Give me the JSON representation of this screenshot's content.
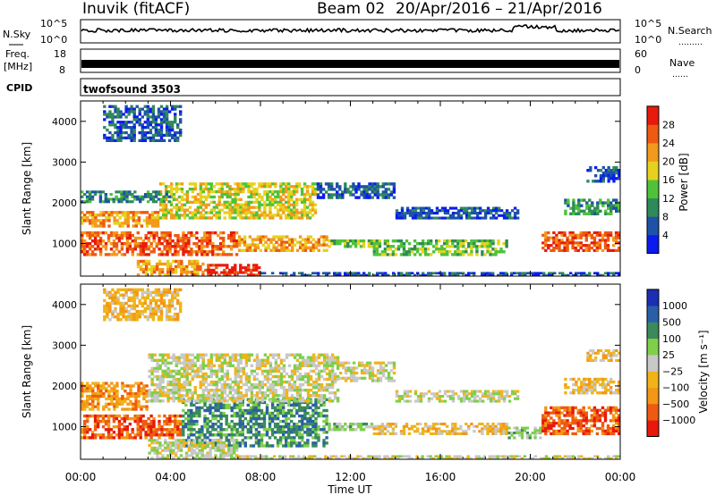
{
  "header": {
    "station": "Inuvik  (fitACF)",
    "beam": "Beam 02",
    "date_range": "20/Apr/2016 – 21/Apr/2016"
  },
  "nsky_panel": {
    "left_label": "N.Sky",
    "right_label": "N.Search",
    "right_dots": "………",
    "tick_top": "10^5",
    "tick_bottom": "10^0",
    "rtick_top": "10^5",
    "rtick_bottom": "10^0"
  },
  "freq_panel": {
    "left_label_1": "Freq.",
    "left_label_2": "[MHz]",
    "right_label": "Nave",
    "right_dots": "……",
    "tick_top": "18",
    "tick_bottom": "8",
    "rtick_top": "60",
    "rtick_bottom": "0"
  },
  "cpid": {
    "label": "CPID",
    "value": "twofsound 3503"
  },
  "colors": {
    "power_scale": [
      "#0a1bf0",
      "#1e52a8",
      "#2f8a5a",
      "#4fc23a",
      "#e6d21e",
      "#f39a1c",
      "#ee5a12",
      "#e81a0c"
    ],
    "velocity_scale": [
      "#e8190c",
      "#ee5a12",
      "#f49716",
      "#f0b419",
      "#c8c8c8",
      "#7fcf4a",
      "#3a8a5a",
      "#2a5fa8",
      "#1a2fb4"
    ]
  },
  "chart_data": [
    {
      "type": "heatmap",
      "name": "power",
      "xlabel": "",
      "ylabel": "Slant Range [km]",
      "yticks": [
        "1000",
        "2000",
        "3000",
        "4000"
      ],
      "ylim": [
        200,
        4500
      ],
      "xlim": [
        0,
        24
      ],
      "colorbar_label": "Power [dB]",
      "colorbar_ticks": [
        "4",
        "8",
        "12",
        "16",
        "20",
        "24",
        "28"
      ],
      "bands": [
        {
          "t0": 0.0,
          "t1": 7.0,
          "r0": 700,
          "r1": 1300,
          "level": 6
        },
        {
          "t0": 7.0,
          "t1": 11.0,
          "r0": 800,
          "r1": 1200,
          "level": 5
        },
        {
          "t0": 11.0,
          "t1": 13.0,
          "r0": 900,
          "r1": 1100,
          "level": 3
        },
        {
          "t0": 13.0,
          "t1": 19.0,
          "r0": 700,
          "r1": 1100,
          "level": 3
        },
        {
          "t0": 20.5,
          "t1": 24.0,
          "r0": 800,
          "r1": 1300,
          "level": 6
        },
        {
          "t0": 0.0,
          "t1": 3.5,
          "r0": 1400,
          "r1": 1800,
          "level": 5
        },
        {
          "t0": 3.5,
          "t1": 10.5,
          "r0": 1600,
          "r1": 2500,
          "level": 4
        },
        {
          "t0": 10.5,
          "t1": 14.0,
          "r0": 2100,
          "r1": 2500,
          "level": 1
        },
        {
          "t0": 14.0,
          "t1": 19.5,
          "r0": 1600,
          "r1": 1900,
          "level": 1
        },
        {
          "t0": 21.5,
          "t1": 24.0,
          "r0": 1700,
          "r1": 2100,
          "level": 2
        },
        {
          "t0": 0.0,
          "t1": 4.0,
          "r0": 2000,
          "r1": 2300,
          "level": 2
        },
        {
          "t0": 2.5,
          "t1": 5.5,
          "r0": 200,
          "r1": 600,
          "level": 5
        },
        {
          "t0": 5.5,
          "t1": 8.0,
          "r0": 200,
          "r1": 500,
          "level": 7
        },
        {
          "t0": 8.0,
          "t1": 24.0,
          "r0": 200,
          "r1": 300,
          "level": 1
        },
        {
          "t0": 22.5,
          "t1": 24.0,
          "r0": 2500,
          "r1": 2900,
          "level": 1
        },
        {
          "t0": 1.0,
          "t1": 4.5,
          "r0": 3500,
          "r1": 4400,
          "level": 1
        }
      ]
    },
    {
      "type": "heatmap",
      "name": "velocity",
      "xlabel": "Time UT",
      "ylabel": "Slant Range [km]",
      "yticks": [
        "1000",
        "2000",
        "3000",
        "4000"
      ],
      "ylim": [
        200,
        4500
      ],
      "xlim": [
        0,
        24
      ],
      "xticks": [
        "00:00",
        "04:00",
        "08:00",
        "12:00",
        "16:00",
        "20:00",
        "00:00"
      ],
      "colorbar_label": "Velocity [m s⁻¹]",
      "colorbar_ticks": [
        "−1000",
        "−500",
        "−100",
        "−25",
        "25",
        "100",
        "500",
        "1000"
      ],
      "bands": [
        {
          "t0": 0.0,
          "t1": 4.5,
          "r0": 700,
          "r1": 1300,
          "level": 1
        },
        {
          "t0": 4.5,
          "t1": 11.0,
          "r0": 500,
          "r1": 1700,
          "level": 6
        },
        {
          "t0": 11.0,
          "t1": 13.0,
          "r0": 900,
          "r1": 1100,
          "level": 5
        },
        {
          "t0": 13.0,
          "t1": 19.0,
          "r0": 800,
          "r1": 1100,
          "level": 3
        },
        {
          "t0": 19.0,
          "t1": 20.5,
          "r0": 700,
          "r1": 1000,
          "level": 5
        },
        {
          "t0": 20.5,
          "t1": 24.0,
          "r0": 800,
          "r1": 1500,
          "level": 1
        },
        {
          "t0": 0.0,
          "t1": 3.0,
          "r0": 1400,
          "r1": 2100,
          "level": 2
        },
        {
          "t0": 3.0,
          "t1": 11.5,
          "r0": 1600,
          "r1": 2800,
          "level": 4
        },
        {
          "t0": 11.5,
          "t1": 14.0,
          "r0": 2100,
          "r1": 2600,
          "level": 4
        },
        {
          "t0": 14.0,
          "t1": 19.5,
          "r0": 1600,
          "r1": 1900,
          "level": 4
        },
        {
          "t0": 21.5,
          "t1": 24.0,
          "r0": 1800,
          "r1": 2200,
          "level": 3
        },
        {
          "t0": 3.0,
          "t1": 7.0,
          "r0": 200,
          "r1": 700,
          "level": 4
        },
        {
          "t0": 7.0,
          "t1": 24.0,
          "r0": 200,
          "r1": 300,
          "level": 4
        },
        {
          "t0": 22.5,
          "t1": 24.0,
          "r0": 2600,
          "r1": 2900,
          "level": 3
        },
        {
          "t0": 1.0,
          "t1": 4.5,
          "r0": 3600,
          "r1": 4400,
          "level": 3
        }
      ]
    }
  ]
}
